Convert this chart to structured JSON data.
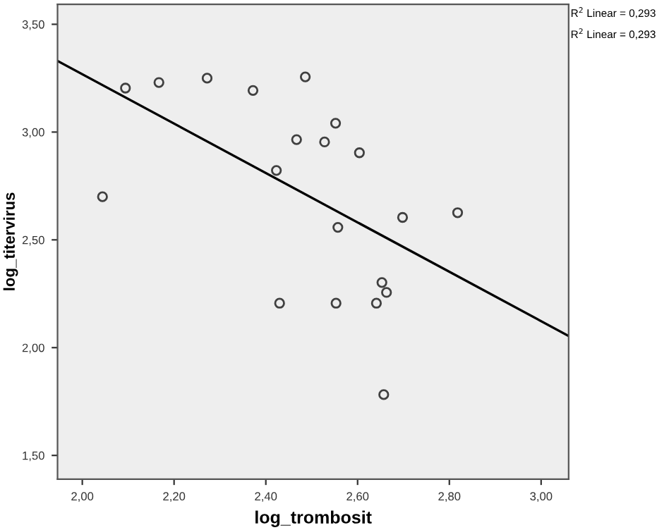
{
  "chart_data": {
    "type": "scatter",
    "xlabel": "log_trombosit",
    "ylabel": "log_titervirus",
    "xlim": [
      1.946,
      3.06
    ],
    "ylim": [
      1.39,
      3.593
    ],
    "xticks": [
      {
        "value": 2.0,
        "label": "2,00"
      },
      {
        "value": 2.2,
        "label": "2,20"
      },
      {
        "value": 2.4,
        "label": "2,40"
      },
      {
        "value": 2.6,
        "label": "2,60"
      },
      {
        "value": 2.8,
        "label": "2,80"
      },
      {
        "value": 3.0,
        "label": "3,00"
      }
    ],
    "yticks": [
      {
        "value": 1.5,
        "label": "1,50"
      },
      {
        "value": 2.0,
        "label": "2,00"
      },
      {
        "value": 2.5,
        "label": "2,50"
      },
      {
        "value": 3.0,
        "label": "3,00"
      },
      {
        "value": 3.5,
        "label": "3,50"
      }
    ],
    "grid": false,
    "series": [
      {
        "marker": "circle",
        "color": "#404040",
        "x": [
          2.044,
          2.094,
          2.167,
          2.272,
          2.372,
          2.486,
          2.552,
          2.467,
          2.528,
          2.604,
          2.423,
          2.557,
          2.698,
          2.818,
          2.43,
          2.553,
          2.641,
          2.653,
          2.663,
          2.657
        ],
        "values": [
          2.7,
          3.204,
          3.23,
          3.25,
          3.193,
          3.256,
          3.041,
          2.965,
          2.954,
          2.904,
          2.822,
          2.558,
          2.604,
          2.626,
          2.206,
          2.206,
          2.206,
          2.302,
          2.256,
          1.782
        ]
      },
      {
        "type": "line",
        "color": "#000000",
        "line_style": "solid",
        "x": [
          1.946,
          3.06
        ],
        "values": [
          3.33,
          2.054
        ]
      }
    ],
    "annotations": [
      "R$^{2}$ Linear = 0,293",
      "R$^{2}$ Linear = 0,293"
    ]
  }
}
